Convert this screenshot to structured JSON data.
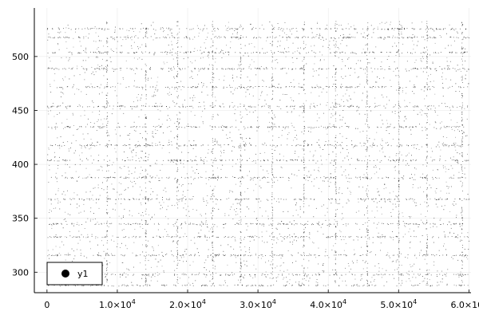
{
  "chart_data": {
    "type": "scatter",
    "title": "",
    "xlabel": "",
    "ylabel": "",
    "xlim": [
      -1800,
      60300
    ],
    "ylim": [
      281,
      545
    ],
    "grid": true,
    "legend": {
      "placement": "bottom-left",
      "entries": [
        "y1"
      ]
    },
    "x_ticks": [
      {
        "value": 0,
        "label": "0"
      },
      {
        "value": 10000,
        "label": "1.0×10",
        "exp": "4"
      },
      {
        "value": 20000,
        "label": "2.0×10",
        "exp": "4"
      },
      {
        "value": 30000,
        "label": "3.0×10",
        "exp": "4"
      },
      {
        "value": 40000,
        "label": "4.0×10",
        "exp": "4"
      },
      {
        "value": 50000,
        "label": "5.0×10",
        "exp": "4"
      },
      {
        "value": 60000,
        "label": "6.0×10",
        "exp": "4"
      }
    ],
    "y_ticks": [
      {
        "value": 300,
        "label": "300"
      },
      {
        "value": 350,
        "label": "350"
      },
      {
        "value": 400,
        "label": "400"
      },
      {
        "value": 450,
        "label": "450"
      },
      {
        "value": 500,
        "label": "500"
      }
    ],
    "series": [
      {
        "name": "y1",
        "color": "#000000",
        "x_range": [
          0,
          60000
        ],
        "y_range": [
          288,
          533
        ],
        "dense_y_bands": [
          288,
          298,
          316,
          333,
          345,
          368,
          388,
          404,
          418,
          435,
          454,
          472,
          489,
          504,
          518,
          526
        ],
        "dense_x_bands": [
          8500,
          14000,
          18500,
          23500,
          27500,
          32000,
          36500,
          41000,
          45500,
          50000,
          54000,
          59000
        ]
      }
    ]
  }
}
